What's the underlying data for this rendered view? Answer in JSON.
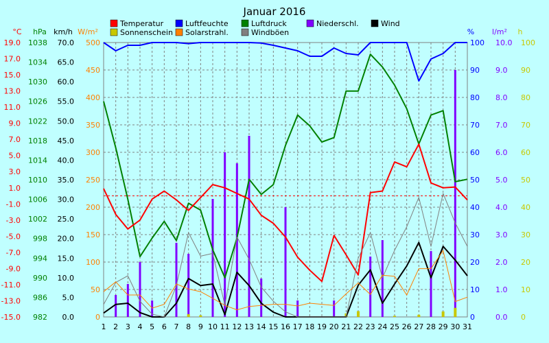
{
  "chart_data": {
    "type": "line",
    "title": "Januar 2016",
    "legend": [
      {
        "label": "Temperatur",
        "color": "#ff0000"
      },
      {
        "label": "Luftfeuchte",
        "color": "#0000ff"
      },
      {
        "label": "Luftdruck",
        "color": "#008000"
      },
      {
        "label": "Niederschl.",
        "color": "#8000ff"
      },
      {
        "label": "Wind",
        "color": "#000000"
      },
      {
        "label": "Sonnenschein",
        "color": "#c8c800"
      },
      {
        "label": "Solarstrahl.",
        "color": "#ff8000"
      },
      {
        "label": "Windböen",
        "color": "#808080"
      }
    ],
    "axis_units": {
      "temp": "°C",
      "press": "hPa",
      "wind": "km/h",
      "solar": "W/m²",
      "hum": "%",
      "rain": "l/m²",
      "sun": "h"
    },
    "axes": {
      "temp": {
        "labels": [
          "19.0",
          "17.0",
          "15.0",
          "13.0",
          "11.0",
          "9.0",
          "7.0",
          "5.0",
          "3.0",
          "1.0",
          "-1.0",
          "-3.0",
          "-5.0",
          "-7.0",
          "-9.0",
          "-11.0",
          "-13.0",
          "-15.0"
        ],
        "color": "#ff0000",
        "range": [
          -15,
          19
        ]
      },
      "press": {
        "labels": [
          "1038",
          "1034",
          "1030",
          "1026",
          "1022",
          "1018",
          "1014",
          "1010",
          "1006",
          "1002",
          "998",
          "994",
          "990",
          "986",
          "982"
        ],
        "color": "#008000",
        "range": [
          982,
          1038
        ]
      },
      "wind": {
        "labels": [
          "70.0",
          "65.0",
          "60.0",
          "55.0",
          "50.0",
          "45.0",
          "40.0",
          "35.0",
          "30.0",
          "25.0",
          "20.0",
          "15.0",
          "10.0",
          "5.0",
          "0.0"
        ],
        "color": "#000000",
        "range": [
          0,
          70
        ]
      },
      "solar": {
        "labels": [
          "500",
          "450",
          "400",
          "350",
          "300",
          "250",
          "200",
          "150",
          "100",
          "50",
          "0"
        ],
        "color": "#ff8000",
        "range": [
          0,
          500
        ]
      },
      "hum": {
        "labels": [
          "100",
          "90",
          "80",
          "70",
          "60",
          "50",
          "40",
          "30",
          "20",
          "10",
          "0"
        ],
        "color": "#0000ff",
        "range": [
          0,
          100
        ]
      },
      "rain": {
        "labels": [
          "10.0",
          "9.0",
          "8.0",
          "7.0",
          "6.0",
          "5.0",
          "4.0",
          "3.0",
          "2.0",
          "1.0",
          "0.0"
        ],
        "color": "#8000ff",
        "range": [
          0,
          10
        ]
      },
      "sun": {
        "labels": [
          "100",
          "90",
          "80",
          "70",
          "60",
          "50",
          "40",
          "30",
          "20",
          "10",
          "0"
        ],
        "color": "#c8c800",
        "range": [
          0,
          100
        ]
      }
    },
    "days": [
      1,
      2,
      3,
      4,
      5,
      6,
      7,
      8,
      9,
      10,
      11,
      12,
      13,
      14,
      15,
      16,
      17,
      18,
      19,
      20,
      21,
      22,
      23,
      24,
      25,
      26,
      27,
      28,
      29,
      30,
      31
    ],
    "series": [
      {
        "name": "Luftfeuchte",
        "axis": "hum",
        "color": "#0000ff",
        "width": 2,
        "x": [
          1,
          2,
          3,
          4,
          5,
          6,
          7,
          8,
          9,
          10,
          11,
          12,
          13,
          14,
          15,
          16,
          17,
          18,
          19,
          20,
          21,
          22,
          23,
          24,
          25,
          26,
          27,
          28,
          29,
          30,
          31
        ],
        "values": [
          100,
          97,
          99,
          99,
          100,
          100,
          100,
          99.6,
          100,
          100,
          100,
          100,
          100,
          99.8,
          99,
          98,
          97,
          95,
          95,
          98,
          96,
          95.5,
          100,
          100,
          100,
          100,
          86,
          94,
          96,
          100,
          100
        ]
      },
      {
        "name": "Luftdruck",
        "axis": "press",
        "color": "#008000",
        "width": 2,
        "x": [
          1,
          2,
          3,
          4,
          5,
          6,
          7,
          8,
          9,
          10,
          11,
          12,
          13,
          14,
          15,
          16,
          17,
          18,
          19,
          20,
          21,
          22,
          23,
          24,
          25,
          26,
          27,
          28,
          29,
          30,
          31
        ],
        "values": [
          1026,
          1016.5,
          1006,
          994.3,
          998.1,
          1001.5,
          997.6,
          1005.2,
          1003.8,
          995.7,
          990,
          998.1,
          1010.1,
          1007,
          1009,
          1017,
          1023.2,
          1021,
          1017.7,
          1018.6,
          1028.1,
          1028.1,
          1035.6,
          1033,
          1029.3,
          1024.5,
          1017.3,
          1023.2,
          1024.1,
          1009.6,
          1010.1
        ]
      },
      {
        "name": "Temperatur",
        "axis": "temp",
        "color": "#ff0000",
        "width": 2,
        "x": [
          1,
          2,
          3,
          4,
          5,
          6,
          7,
          8,
          9,
          10,
          11,
          12,
          13,
          14,
          15,
          16,
          17,
          18,
          19,
          20,
          21,
          22,
          23,
          24,
          25,
          26,
          27,
          28,
          29,
          30,
          31
        ],
        "values": [
          0.9,
          -2.3,
          -4.1,
          -3.0,
          -0.4,
          0.6,
          -0.5,
          -1.8,
          -0.2,
          1.4,
          1.0,
          0.3,
          -0.4,
          -2.4,
          -3.4,
          -5.1,
          -7.6,
          -9.2,
          -10.6,
          -4.9,
          -7.3,
          -9.8,
          0.4,
          0.6,
          4.2,
          3.6,
          6.4,
          1.6,
          1.0,
          1.1,
          -0.5
        ]
      },
      {
        "name": "Wind",
        "axis": "wind",
        "color": "#000000",
        "width": 2,
        "x": [
          1,
          2,
          3,
          4,
          5,
          6,
          7,
          8,
          9,
          10,
          11,
          12,
          13,
          14,
          15,
          16,
          17,
          18,
          19,
          20,
          21,
          22,
          23,
          24,
          25,
          26,
          27,
          28,
          29,
          30,
          31
        ],
        "values": [
          1.0,
          3.2,
          3.5,
          1.1,
          0,
          0,
          3.5,
          9.8,
          8.0,
          8.4,
          0.6,
          11.4,
          8.0,
          3.5,
          1.2,
          0,
          0,
          0,
          0,
          0,
          0,
          8.1,
          12.0,
          3.5,
          8.4,
          13.0,
          19.0,
          10.0,
          18.0,
          14.5,
          10.5
        ]
      },
      {
        "name": "Windböen",
        "axis": "wind",
        "color": "#808080",
        "width": 1,
        "x": [
          1,
          2,
          3,
          4,
          5,
          6,
          7,
          8,
          9,
          10,
          11,
          12,
          13,
          14,
          15,
          16,
          17,
          18,
          19,
          20,
          21,
          22,
          23,
          24,
          25,
          26,
          27,
          28,
          29,
          30,
          31
        ],
        "values": [
          3.2,
          8.8,
          10.5,
          4.0,
          0.7,
          0,
          8.0,
          21.5,
          15.5,
          16.2,
          3.0,
          20.4,
          14.7,
          7.6,
          4.0,
          1.3,
          0,
          0,
          0,
          0,
          0,
          15.0,
          21.5,
          10.0,
          17.0,
          23.0,
          30.5,
          18.0,
          31.5,
          24.0,
          18.0
        ]
      },
      {
        "name": "Solarstrahl.",
        "axis": "solar",
        "color": "#ff8000",
        "width": 1,
        "x": [
          1,
          2,
          3,
          4,
          5,
          6,
          7,
          8,
          9,
          10,
          11,
          12,
          13,
          14,
          15,
          16,
          17,
          18,
          19,
          20,
          21,
          22,
          23,
          24,
          25,
          26,
          27,
          28,
          29,
          30,
          31
        ],
        "values": [
          46,
          64,
          40,
          40,
          16,
          23,
          60,
          51,
          46,
          34,
          21,
          13,
          19,
          21,
          23,
          23,
          20,
          25,
          23,
          21,
          42,
          62,
          41,
          76,
          74,
          40,
          88,
          88,
          121,
          28,
          36
        ]
      }
    ],
    "bars": [
      {
        "name": "Niederschl.",
        "axis": "rain",
        "color": "#8000ff",
        "x": [
          2,
          3,
          4,
          5,
          7,
          8,
          10,
          11,
          12,
          13,
          14,
          16,
          17,
          20,
          23,
          24,
          28,
          30
        ],
        "values": [
          0.8,
          1.2,
          2.0,
          0.6,
          2.7,
          2.3,
          4.3,
          6.0,
          5.6,
          6.6,
          1.4,
          4.0,
          0.6,
          0.6,
          2.2,
          2.8,
          2.4,
          9.0
        ]
      },
      {
        "name": "Sonnenschein",
        "axis": "sun",
        "color": "#c8c800",
        "x": [
          8,
          9,
          21,
          22,
          25,
          27,
          29,
          30
        ],
        "values": [
          1.0,
          0.6,
          1.3,
          2.1,
          0.4,
          0.8,
          2.0,
          3.3
        ]
      }
    ],
    "reference_line": {
      "axis": "temp",
      "value": 0,
      "color": "#ff0000",
      "style": "dashed"
    },
    "grid": true
  }
}
